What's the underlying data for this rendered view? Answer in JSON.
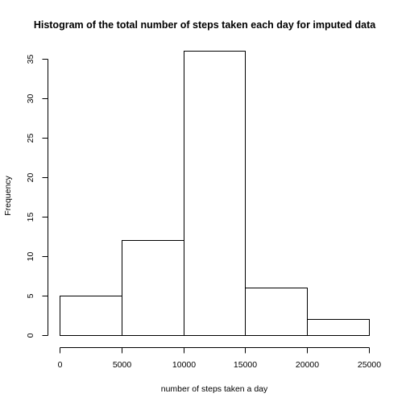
{
  "chart_data": {
    "type": "bar",
    "title": "Histogram of the total number of steps taken each day for imputed data",
    "xlabel": "number of steps taken a day",
    "ylabel": "Frequency",
    "bins": [
      {
        "start": 0,
        "end": 5000,
        "count": 5
      },
      {
        "start": 5000,
        "end": 10000,
        "count": 12
      },
      {
        "start": 10000,
        "end": 15000,
        "count": 36
      },
      {
        "start": 15000,
        "end": 20000,
        "count": 6
      },
      {
        "start": 20000,
        "end": 25000,
        "count": 2
      }
    ],
    "xlim": [
      0,
      25000
    ],
    "ylim": [
      0,
      36
    ],
    "x_ticks": [
      0,
      5000,
      10000,
      15000,
      20000,
      25000
    ],
    "y_ticks": [
      0,
      5,
      10,
      15,
      20,
      25,
      30,
      35
    ],
    "grid": false,
    "colors": {
      "bar_fill": "#ffffff",
      "bar_stroke": "#000000"
    }
  }
}
